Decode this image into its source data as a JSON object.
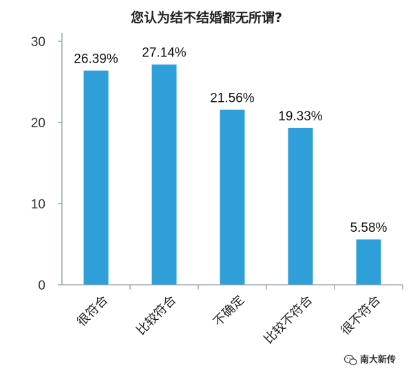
{
  "chart_data": {
    "type": "bar",
    "title": "您认为结不结婚都无所谓?",
    "categories": [
      "很符合",
      "比较符合",
      "不确定",
      "比较不符合",
      "很不符合"
    ],
    "values": [
      26.39,
      27.14,
      21.56,
      19.33,
      5.58
    ],
    "data_labels": [
      "26.39%",
      "27.14%",
      "21.56%",
      "19.33%",
      "5.58%"
    ],
    "ylim": [
      0,
      30
    ],
    "yticks": [
      0,
      10,
      20,
      30
    ],
    "grid": false,
    "bar_color": "#2e9fd8",
    "axis_color": "#8a9aa6"
  },
  "watermark": {
    "icon": "wechat-icon",
    "text": "南大新传"
  }
}
